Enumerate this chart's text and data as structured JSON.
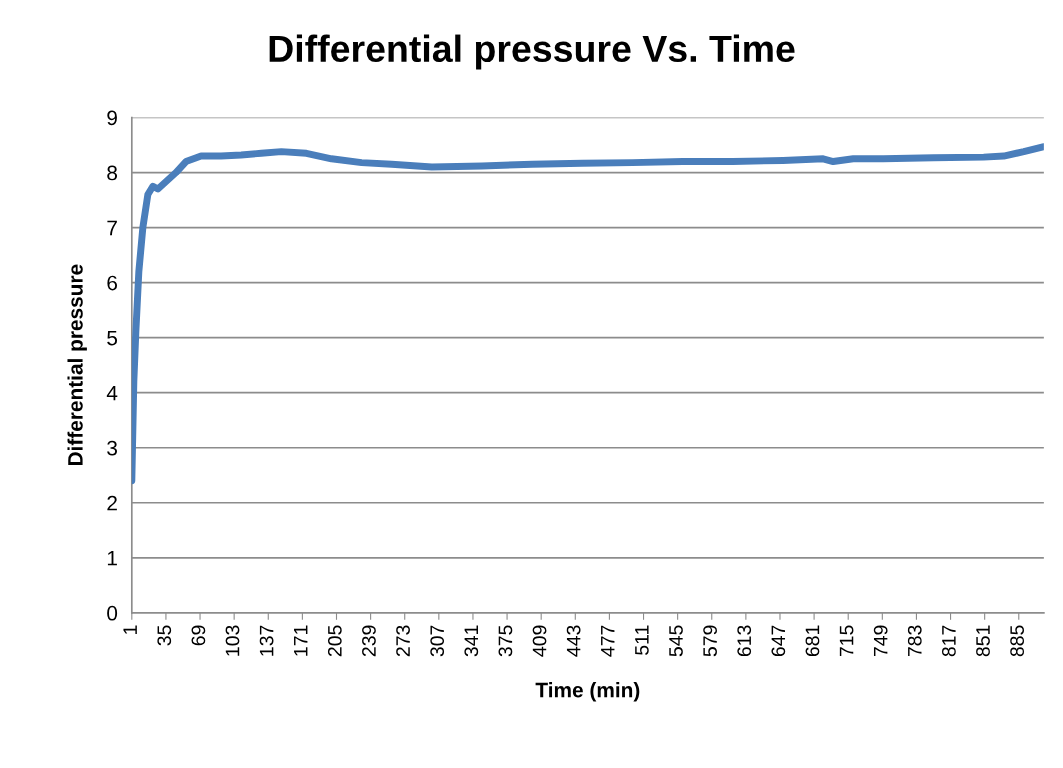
{
  "chart_data": {
    "type": "line",
    "title": "Differential pressure Vs. Time",
    "xlabel": "Time (min)",
    "ylabel": "Differential pressure",
    "xlim": [
      1,
      910
    ],
    "xticks": [
      1,
      35,
      69,
      103,
      137,
      171,
      205,
      239,
      273,
      307,
      341,
      375,
      409,
      443,
      477,
      511,
      545,
      579,
      613,
      647,
      681,
      715,
      749,
      783,
      817,
      851,
      885
    ],
    "ylim": [
      0,
      9
    ],
    "yticks": [
      0,
      1,
      2,
      3,
      4,
      5,
      6,
      7,
      8,
      9
    ],
    "grid": "y",
    "marker": "none",
    "line_style": "solid",
    "series": [
      {
        "color": "#4a7ebb",
        "x": [
          1,
          3,
          5,
          8,
          12,
          17,
          22,
          27,
          33,
          45,
          55,
          70,
          90,
          110,
          130,
          150,
          175,
          200,
          230,
          260,
          300,
          350,
          400,
          450,
          500,
          550,
          600,
          650,
          690,
          700,
          720,
          750,
          800,
          850,
          870,
          890,
          910
        ],
        "values": [
          2.4,
          4.2,
          5.1,
          6.2,
          7.0,
          7.6,
          7.75,
          7.7,
          7.8,
          8.0,
          8.2,
          8.3,
          8.3,
          8.32,
          8.35,
          8.38,
          8.35,
          8.25,
          8.18,
          8.15,
          8.1,
          8.12,
          8.15,
          8.17,
          8.18,
          8.2,
          8.2,
          8.22,
          8.25,
          8.2,
          8.25,
          8.25,
          8.27,
          8.28,
          8.3,
          8.38,
          8.47
        ]
      }
    ]
  }
}
